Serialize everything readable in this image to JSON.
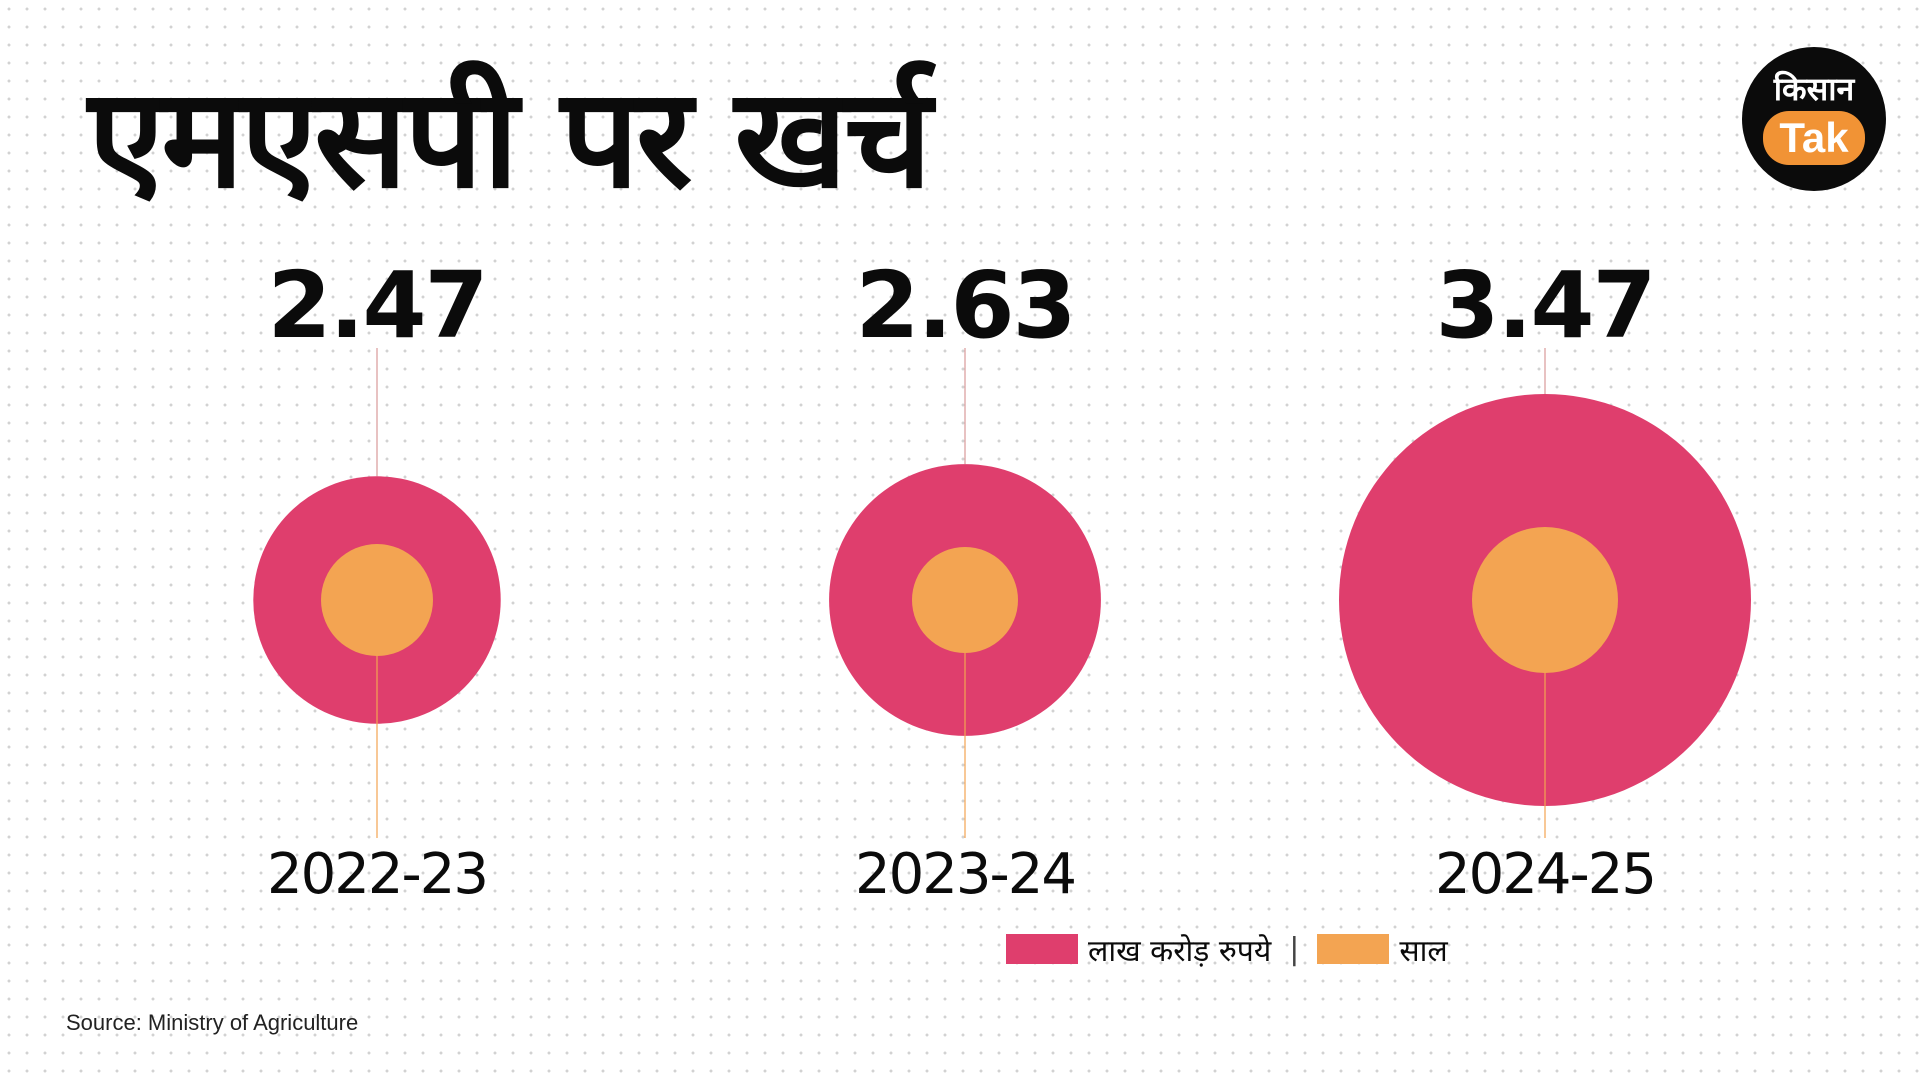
{
  "title": "एमएसपी पर खर्च",
  "logo": {
    "top": "किसान",
    "bottom": "Tak"
  },
  "colors": {
    "outer": "#df3e6d",
    "inner": "#f3a452",
    "leader": "#d99a9a",
    "text": "#0b0b0b"
  },
  "chart_data": {
    "type": "bubble",
    "categories": [
      "2022-23",
      "2023-24",
      "2024-25"
    ],
    "values": [
      2.47,
      2.63,
      3.47
    ],
    "value_labels": [
      "2.47",
      "2.63",
      "3.47"
    ],
    "title": "एमएसपी पर खर्च",
    "legend": [
      "लाख करोड़ रुपये",
      "साल"
    ],
    "legend_placement": "bottom-right"
  },
  "legend": {
    "value_label": "लाख करोड़ रुपये",
    "separator": "|",
    "year_label": "साल"
  },
  "source": "Source: Ministry of Agriculture"
}
